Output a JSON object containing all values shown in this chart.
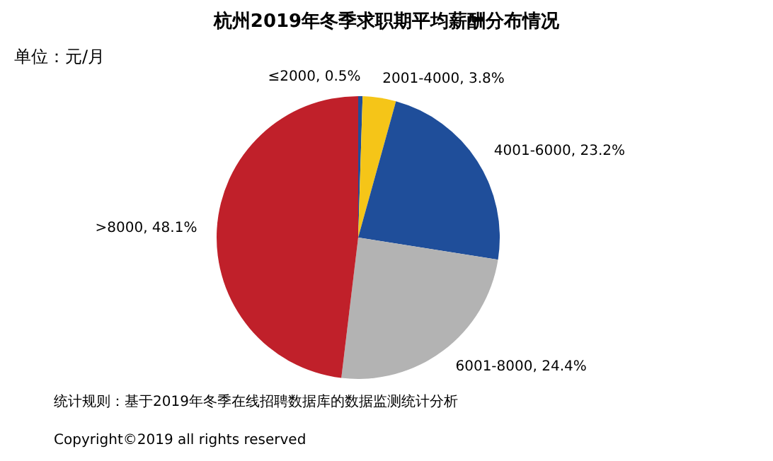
{
  "chart_data": {
    "type": "pie",
    "title": "杭州2019年冬季求职期平均薪酬分布情况",
    "categories": [
      "≤2000",
      "2001-4000",
      "4001-6000",
      "6001-8000",
      ">8000"
    ],
    "values": [
      0.5,
      3.8,
      23.2,
      24.4,
      48.1
    ],
    "value_labels": [
      "0.5%",
      "3.8%",
      "23.2%",
      "24.4%",
      "48.1%"
    ],
    "colors": [
      "#1f4e9a",
      "#f5c518",
      "#1f4e9a",
      "#b3b3b3",
      "#c0202a"
    ],
    "annotations": [
      "单位：元/月",
      "统计规则：基于2019年冬季在线招聘数据库的数据监测统计分析",
      "Copyright©2019 all rights reserved"
    ]
  }
}
